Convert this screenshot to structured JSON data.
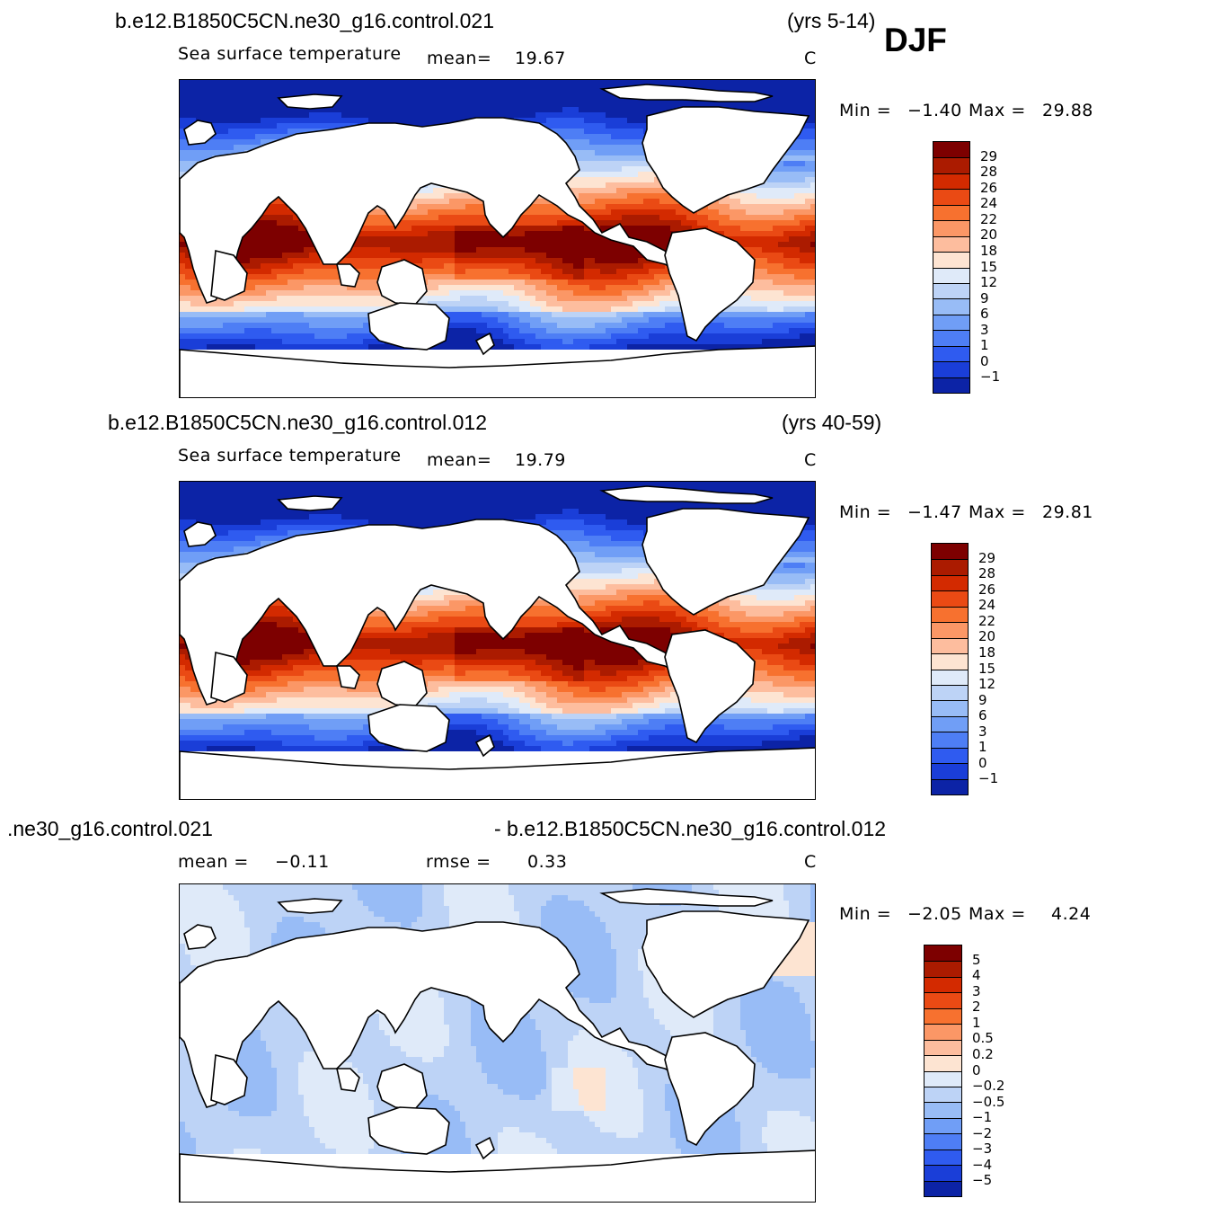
{
  "season": "DJF",
  "panels": [
    {
      "case": "b.e12.B1850C5CN.ne30_g16.control.021",
      "years": "(yrs 5-14)",
      "variable": "Sea surface temperature",
      "stat1_label": "mean=",
      "stat1_value": "19.67",
      "stat2_label": "",
      "stat2_value": "",
      "units": "C",
      "min_label": "Min  =",
      "min_value": "−1.40",
      "max_label": "Max  =",
      "max_value": "29.88",
      "levels": [
        "29",
        "28",
        "26",
        "24",
        "22",
        "20",
        "18",
        "15",
        "12",
        "9",
        "6",
        "3",
        "1",
        "0",
        "−1"
      ],
      "colors": [
        "#7d0000",
        "#ab1b00",
        "#d32a00",
        "#ea4a14",
        "#f7712f",
        "#fb9766",
        "#fdbd9e",
        "#fde4d2",
        "#dfeaf9",
        "#bdd3f6",
        "#98bcf6",
        "#709ef6",
        "#4e7ef5",
        "#2f5bf0",
        "#1a3ed8",
        "#0c23a6"
      ]
    },
    {
      "case": "b.e12.B1850C5CN.ne30_g16.control.012",
      "years": "(yrs 40-59)",
      "variable": "Sea surface temperature",
      "stat1_label": "mean=",
      "stat1_value": "19.79",
      "stat2_label": "",
      "stat2_value": "",
      "units": "C",
      "min_label": "Min  =",
      "min_value": "−1.47",
      "max_label": "Max  =",
      "max_value": "29.81",
      "levels": [
        "29",
        "28",
        "26",
        "24",
        "22",
        "20",
        "18",
        "15",
        "12",
        "9",
        "6",
        "3",
        "1",
        "0",
        "−1"
      ],
      "colors": [
        "#7d0000",
        "#ab1b00",
        "#d32a00",
        "#ea4a14",
        "#f7712f",
        "#fb9766",
        "#fdbd9e",
        "#fde4d2",
        "#dfeaf9",
        "#bdd3f6",
        "#98bcf6",
        "#709ef6",
        "#4e7ef5",
        "#2f5bf0",
        "#1a3ed8",
        "#0c23a6"
      ]
    },
    {
      "case": ".ne30_g16.control.021",
      "years": "- b.e12.B1850C5CN.ne30_g16.control.012",
      "variable": "",
      "stat1_label": "mean  =",
      "stat1_value": "−0.11",
      "stat2_label": "rmse  =",
      "stat2_value": "0.33",
      "units": "C",
      "min_label": "Min  =",
      "min_value": "−2.05",
      "max_label": "Max  =",
      "max_value": "4.24",
      "levels": [
        "5",
        "4",
        "3",
        "2",
        "1",
        "0.5",
        "0.2",
        "0",
        "−0.2",
        "−0.5",
        "−1",
        "−2",
        "−3",
        "−4",
        "−5"
      ],
      "colors": [
        "#7d0000",
        "#ab1b00",
        "#d32a00",
        "#ea4a14",
        "#f7712f",
        "#fb9766",
        "#fdbd9e",
        "#fde4d2",
        "#dfeaf9",
        "#bdd3f6",
        "#98bcf6",
        "#709ef6",
        "#4e7ef5",
        "#2f5bf0",
        "#1a3ed8",
        "#0c23a6"
      ]
    }
  ]
}
